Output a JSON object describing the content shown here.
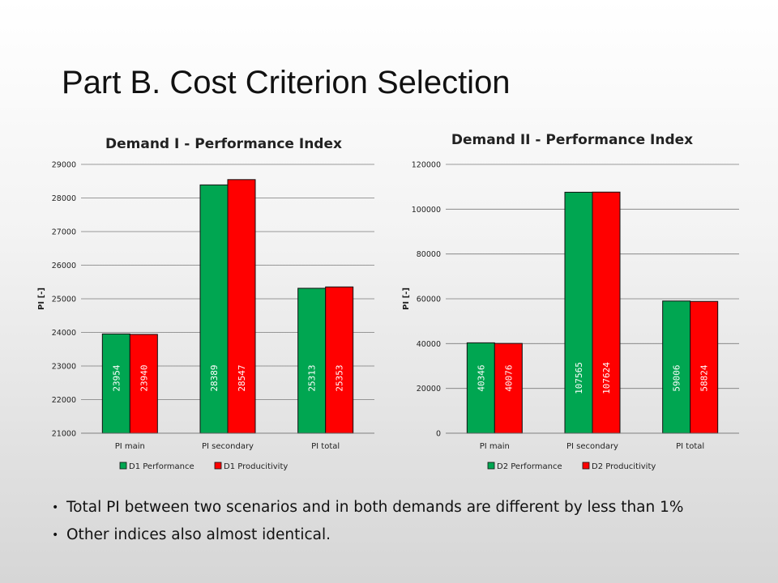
{
  "title": "Part B. Cost Criterion Selection",
  "bullets": [
    "Total PI between two scenarios and in both demands are different by less than 1%",
    "Other indices also almost identical."
  ],
  "chart_data": [
    {
      "type": "bar",
      "title": "Demand I - Performance Index",
      "ylabel": "PI [-]",
      "xlabel": "",
      "categories": [
        "PI main",
        "PI secondary",
        "PI total"
      ],
      "ylim": [
        21000,
        29000
      ],
      "yticks": [
        21000,
        22000,
        23000,
        24000,
        25000,
        26000,
        27000,
        28000,
        29000
      ],
      "grid": true,
      "legend": "bottom",
      "series": [
        {
          "name": "D1 Performance",
          "color": "#00a651",
          "values": [
            23954,
            28389,
            25313
          ]
        },
        {
          "name": "D1 Producitivity",
          "color": "#ff0000",
          "values": [
            23940,
            28547,
            25353
          ]
        }
      ]
    },
    {
      "type": "bar",
      "title": "Demand II - Performance Index",
      "ylabel": "PI [-]",
      "xlabel": "",
      "categories": [
        "PI main",
        "PI secondary",
        "PI total"
      ],
      "ylim": [
        0,
        120000
      ],
      "yticks": [
        0,
        20000,
        40000,
        60000,
        80000,
        100000,
        120000
      ],
      "grid": true,
      "legend": "bottom",
      "series": [
        {
          "name": "D2 Performance",
          "color": "#00a651",
          "values": [
            40346,
            107565,
            59006
          ]
        },
        {
          "name": "D2 Producitivity",
          "color": "#ff0000",
          "values": [
            40076,
            107624,
            58824
          ]
        }
      ]
    }
  ]
}
